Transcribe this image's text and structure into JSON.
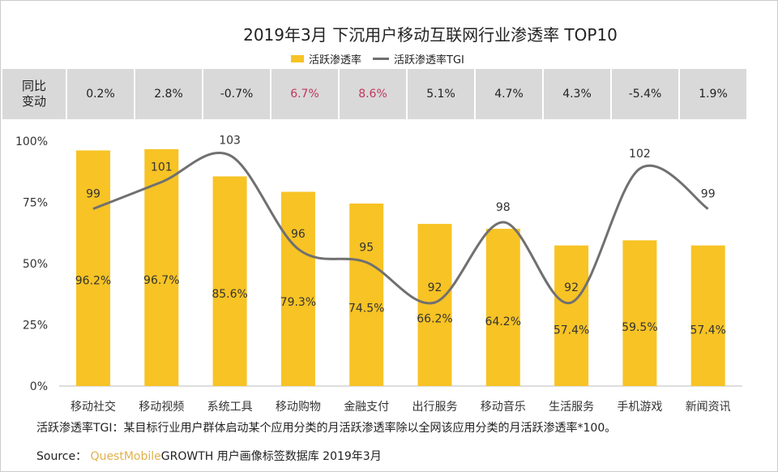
{
  "chart_data": {
    "type": "bar+line",
    "title": "2019年3月 下沉用户移动互联网行业渗透率 TOP10",
    "categories": [
      "移动社交",
      "移动视频",
      "系统工具",
      "移动购物",
      "金融支付",
      "出行服务",
      "移动音乐",
      "生活服务",
      "手机游戏",
      "新闻资讯"
    ],
    "series": [
      {
        "name": "活跃渗透率",
        "type": "bar",
        "values": [
          96.2,
          96.7,
          85.6,
          79.3,
          74.5,
          66.2,
          64.2,
          57.4,
          59.5,
          57.4
        ],
        "labels": [
          "96.2%",
          "96.7%",
          "85.6%",
          "79.3%",
          "74.5%",
          "66.2%",
          "64.2%",
          "57.4%",
          "59.5%",
          "57.4%"
        ],
        "color": "#f7c325"
      },
      {
        "name": "活跃渗透率TGI",
        "type": "line",
        "values": [
          99,
          101,
          103,
          96,
          95,
          92,
          98,
          92,
          102,
          99
        ],
        "color": "#707070"
      }
    ],
    "yticks": [
      "0%",
      "25%",
      "50%",
      "75%",
      "100%"
    ],
    "ylim": [
      0,
      100
    ],
    "legend_position": "top-center",
    "yoy_row": {
      "header": "同比\n变动",
      "values": [
        "0.2%",
        "2.8%",
        "-0.7%",
        "6.7%",
        "8.6%",
        "5.1%",
        "4.7%",
        "4.3%",
        "-5.4%",
        "1.9%"
      ],
      "highlight": [
        false,
        false,
        false,
        true,
        true,
        false,
        false,
        false,
        false,
        false
      ],
      "highlight_color": "#c0395a"
    }
  },
  "note": "活跃渗透率TGI：某目标行业用户群体启动某个应用分类的月活跃渗透率除以全网该应用分类的月活跃渗透率*100。",
  "source": {
    "label": "Source：",
    "brand": "QuestMobile",
    "text": "GROWTH 用户画像标签数据库 2019年3月"
  }
}
